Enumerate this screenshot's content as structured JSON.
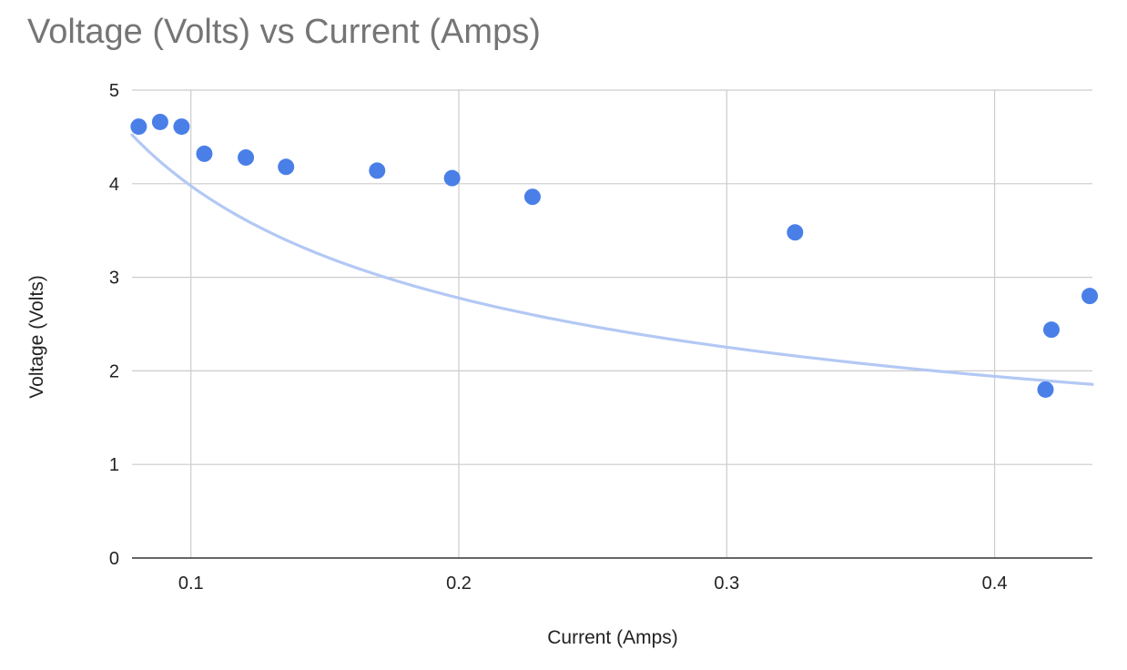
{
  "chart_data": {
    "type": "scatter",
    "title": "Voltage (Volts) vs Current (Amps)",
    "xlabel": "Current (Amps)",
    "ylabel": "Voltage (Volts)",
    "xlim": [
      0.078,
      0.4365
    ],
    "ylim": [
      0,
      5
    ],
    "xticks": [
      0.1,
      0.2,
      0.3,
      0.4
    ],
    "xtick_labels": [
      "0.1",
      "0.2",
      "0.3",
      "0.4"
    ],
    "yticks": [
      0,
      1,
      2,
      3,
      4,
      5
    ],
    "ytick_labels": [
      "0",
      "1",
      "2",
      "3",
      "4",
      "5"
    ],
    "grid": true,
    "legend": "none",
    "series": [
      {
        "points": [
          {
            "x": 0.0805,
            "y": 4.61
          },
          {
            "x": 0.0885,
            "y": 4.66
          },
          {
            "x": 0.0965,
            "y": 4.61
          },
          {
            "x": 0.105,
            "y": 4.32
          },
          {
            "x": 0.1205,
            "y": 4.28
          },
          {
            "x": 0.1355,
            "y": 4.18
          },
          {
            "x": 0.1695,
            "y": 4.14
          },
          {
            "x": 0.1975,
            "y": 4.06
          },
          {
            "x": 0.2275,
            "y": 3.86
          },
          {
            "x": 0.3255,
            "y": 3.48
          },
          {
            "x": 0.419,
            "y": 1.8
          },
          {
            "x": 0.4212,
            "y": 2.44
          },
          {
            "x": 0.4355,
            "y": 2.8
          }
        ],
        "color": "#4a7fe8"
      }
    ],
    "trendline": {
      "type": "power",
      "coefficient": 1.2087,
      "exponent": -0.5172,
      "color": "#b3c8f4"
    }
  }
}
